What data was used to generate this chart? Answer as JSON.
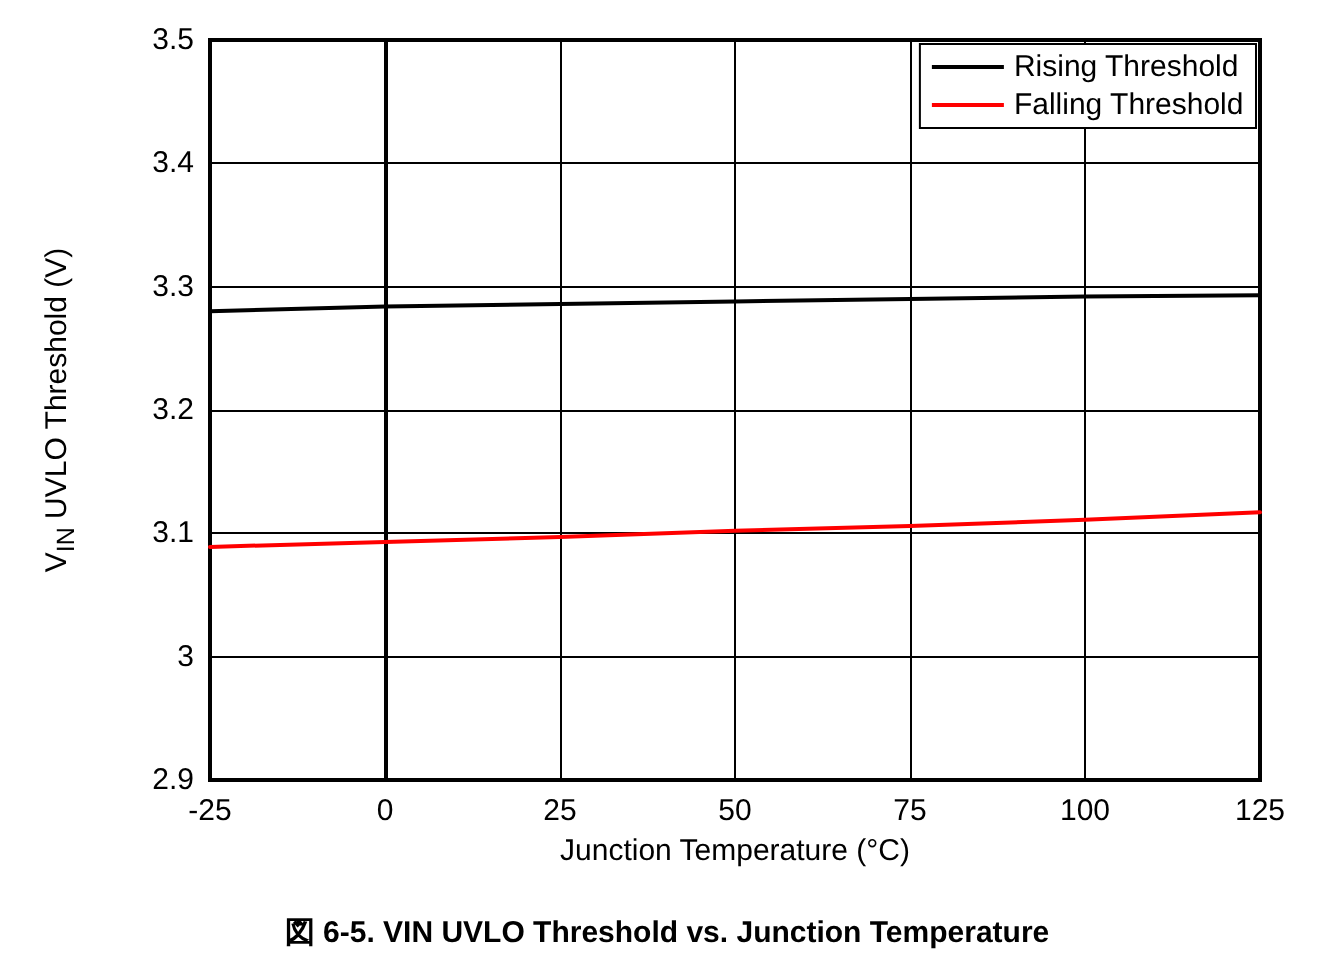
{
  "chart_data": {
    "type": "line",
    "xlabel": "Junction Temperature (°C)",
    "ylabel": "V$_{IN}$ UVLO Threshold (V)",
    "annotations": [
      "図 6-5. VIN UVLO Threshold vs. Junction Temperature"
    ],
    "x": [
      -25,
      0,
      25,
      50,
      75,
      100,
      125
    ],
    "series": [
      {
        "name": "Rising Threshold",
        "color": "#000000",
        "values": [
          3.28,
          3.284,
          3.286,
          3.288,
          3.29,
          3.292,
          3.293
        ]
      },
      {
        "name": "Falling Threshold",
        "color": "#ff0000",
        "values": [
          3.089,
          3.093,
          3.097,
          3.102,
          3.106,
          3.111,
          3.117
        ]
      }
    ],
    "xlim": [
      -25,
      125
    ],
    "xticks": [
      -25,
      0,
      25,
      50,
      75,
      100,
      125
    ],
    "ylim": [
      2.9,
      3.5
    ],
    "yticks": [
      2.9,
      3,
      3.1,
      3.2,
      3.3,
      3.4,
      3.5
    ],
    "grid": true,
    "legend": "top right",
    "marker": "none",
    "line_style": "solid"
  }
}
